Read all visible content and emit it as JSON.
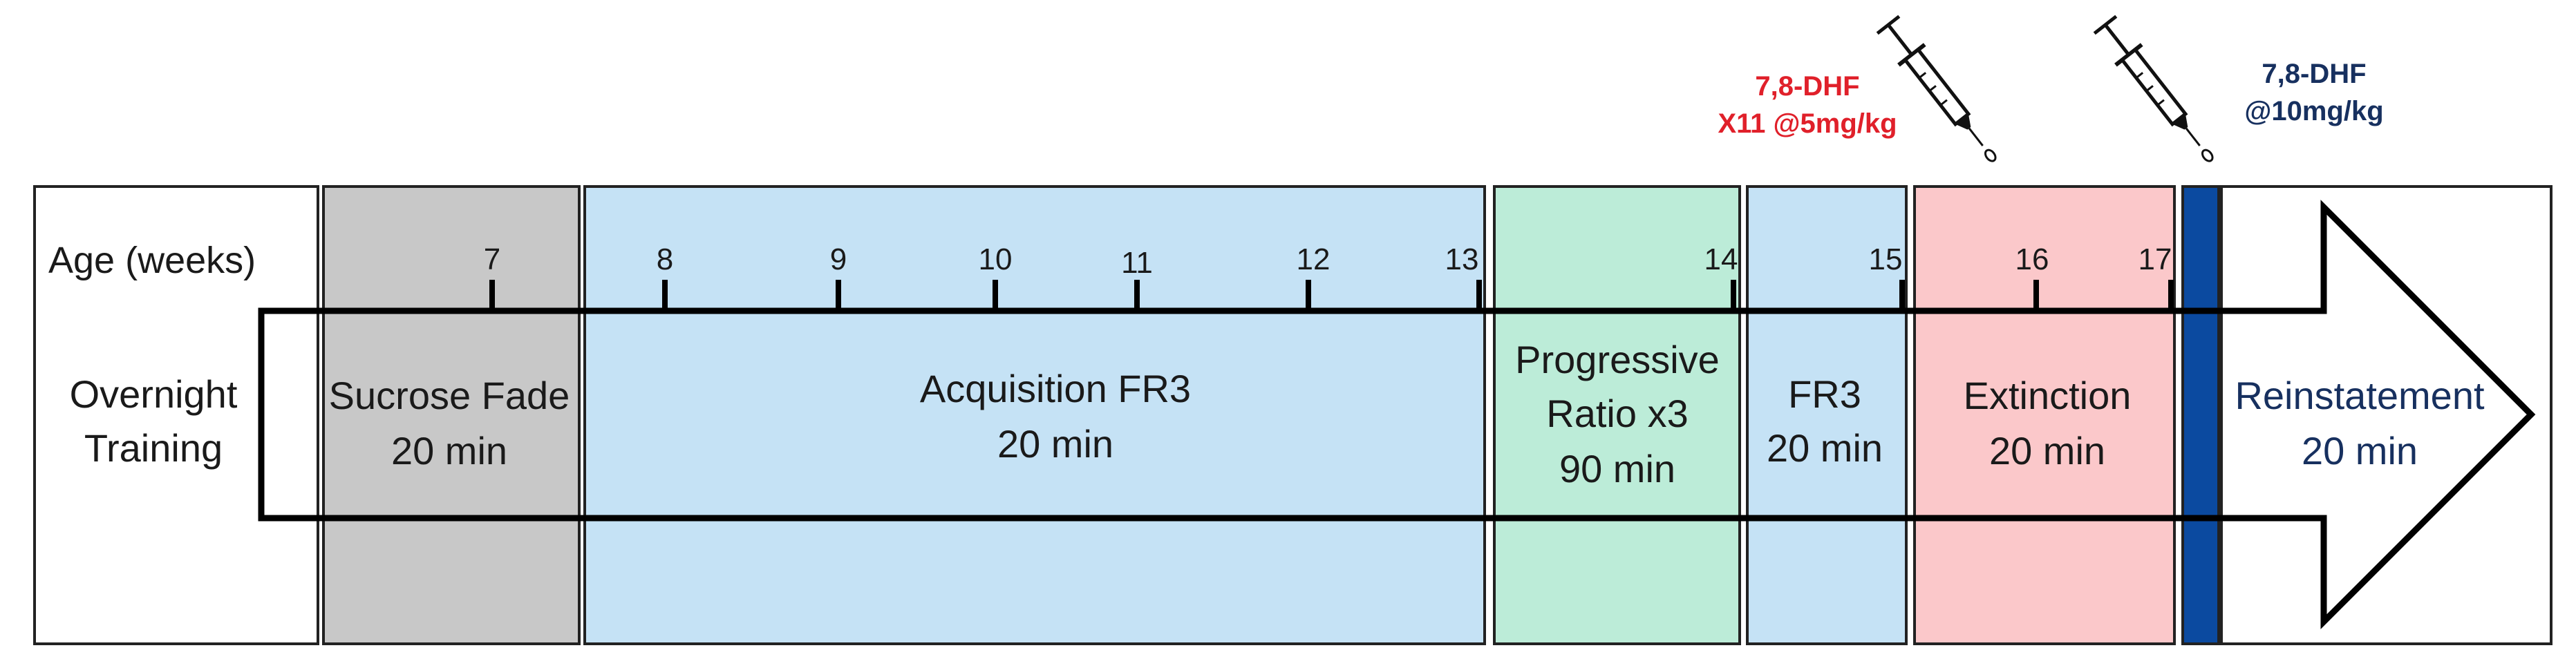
{
  "axis_label": "Age (weeks)",
  "ticks": [
    "7",
    "8",
    "9",
    "10",
    "11",
    "12",
    "13",
    "14",
    "15",
    "16",
    "17"
  ],
  "colors": {
    "overnight": "#ffffff",
    "sucrose": "#c8c8c8",
    "acquisition": "#c5e2f5",
    "progressive": "#bcecd8",
    "fr3": "#c5e2f5",
    "extinction": "#fbc8ca",
    "drug_bar": "#0b4aa0",
    "reinstatement": "#ffffff",
    "annotation_red": "#e0202a",
    "annotation_blue": "#17305f"
  },
  "segments": {
    "overnight": {
      "line1": "Overnight",
      "line2": "Training"
    },
    "sucrose": {
      "line1": "Sucrose Fade",
      "line2": "20 min"
    },
    "acquisition": {
      "line1": "Acquisition FR3",
      "line2": "20 min"
    },
    "progressive": {
      "line1": "Progressive",
      "line2": "Ratio x3",
      "line3": "90 min"
    },
    "fr3": {
      "line1": "FR3",
      "line2": "20 min"
    },
    "extinction": {
      "line1": "Extinction",
      "line2": "20 min"
    },
    "reinstatement": {
      "line1": "Reinstatement",
      "line2": "20 min"
    }
  },
  "annotations": {
    "extinction_drug": {
      "line1": "7,8-DHF",
      "line2": "X11 @5mg/kg"
    },
    "reinstatement_drug": {
      "line1": "7,8-DHF",
      "line2": "@10mg/kg"
    }
  },
  "icons": [
    "syringe-icon",
    "syringe-icon"
  ]
}
